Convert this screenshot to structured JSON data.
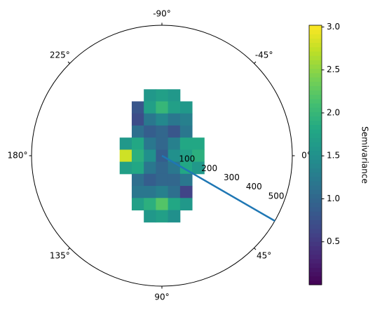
{
  "chart_data": {
    "type": "polar-contour",
    "theta_direction": "clockwise",
    "theta_zero": "E",
    "thetaticks": [
      {
        "value": 0,
        "label": "0°"
      },
      {
        "value": 45,
        "label": "45°"
      },
      {
        "value": 90,
        "label": "90°"
      },
      {
        "value": 135,
        "label": "135°"
      },
      {
        "value": 180,
        "label": "180°"
      },
      {
        "value": 225,
        "label": "225°"
      },
      {
        "value": -90,
        "label": "-90°"
      },
      {
        "value": -45,
        "label": "-45°"
      }
    ],
    "rlim": [
      0,
      540
    ],
    "rticks": [
      100,
      200,
      300,
      400,
      500
    ],
    "grid_x": [
      -150,
      -100,
      -50,
      0,
      50,
      100,
      150
    ],
    "grid_y": [
      -250,
      -200,
      -150,
      -100,
      -50,
      0,
      50,
      100,
      150,
      200,
      250
    ],
    "values": [
      [
        null,
        null,
        1.6,
        1.7,
        1.6,
        null,
        null
      ],
      [
        null,
        0.8,
        1.7,
        2.0,
        1.7,
        1.6,
        null
      ],
      [
        null,
        0.7,
        1.2,
        1.4,
        1.2,
        1.3,
        null
      ],
      [
        null,
        1.1,
        0.9,
        1.0,
        0.8,
        1.2,
        null
      ],
      [
        1.6,
        1.8,
        1.2,
        1.0,
        1.3,
        1.8,
        1.8
      ],
      [
        2.8,
        1.9,
        1.5,
        0.9,
        1.5,
        1.7,
        1.9
      ],
      [
        1.7,
        1.8,
        1.2,
        1.0,
        1.2,
        1.8,
        1.6
      ],
      [
        null,
        1.1,
        0.9,
        1.0,
        1.0,
        1.2,
        null
      ],
      [
        null,
        1.2,
        1.2,
        1.3,
        1.1,
        0.6,
        null
      ],
      [
        null,
        1.7,
        1.9,
        2.2,
        1.8,
        1.6,
        null
      ],
      [
        null,
        null,
        1.6,
        1.7,
        1.5,
        null,
        null
      ]
    ],
    "colormap": "viridis",
    "line": {
      "theta": [
        30,
        30
      ],
      "r": [
        0,
        540
      ],
      "color": "#1f77b4"
    },
    "colorbar": {
      "label": "Semivariance",
      "lim": [
        0,
        3.02
      ],
      "ticks": [
        0.5,
        1.0,
        1.5,
        2.0,
        2.5,
        3.0
      ]
    }
  }
}
